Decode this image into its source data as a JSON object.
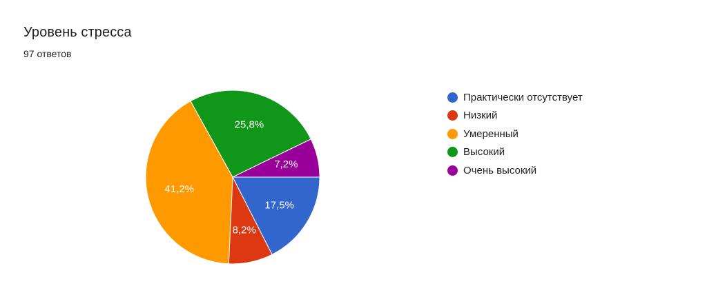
{
  "header": {
    "title": "Уровень стресса",
    "subtitle": "97 ответов"
  },
  "chart_data": {
    "type": "pie",
    "title": "Уровень стресса",
    "slices": [
      {
        "label": "Практически отсутствует",
        "value": 17.5,
        "display": "17,5%",
        "color": "#3366cc"
      },
      {
        "label": "Низкий",
        "value": 8.2,
        "display": "8,2%",
        "color": "#dc3912"
      },
      {
        "label": "Умеренный",
        "value": 41.2,
        "display": "41,2%",
        "color": "#ff9900"
      },
      {
        "label": "Высокий",
        "value": 25.8,
        "display": "25,8%",
        "color": "#109618"
      },
      {
        "label": "Очень высокий",
        "value": 7.2,
        "display": "7,2%",
        "color": "#990099"
      }
    ],
    "legend_position": "right"
  }
}
